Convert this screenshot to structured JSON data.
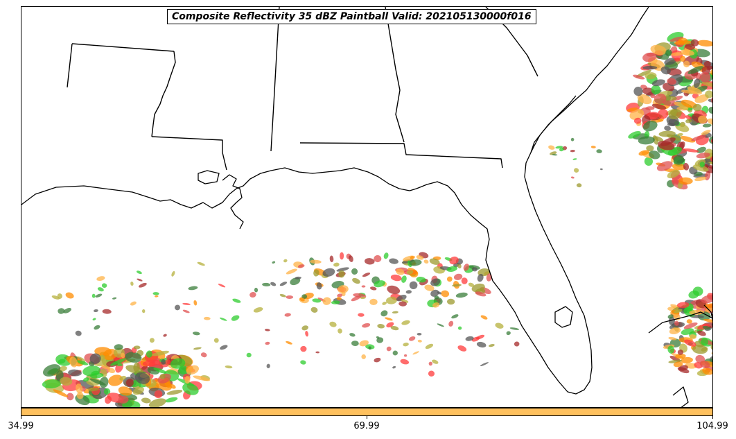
{
  "title": "Composite Reflectivity 35 dBZ Paintball Valid: 202105130000f016",
  "colorbar": {
    "color": "#ffc15e",
    "ticks": [
      "34.99",
      "69.99",
      "104.99"
    ]
  },
  "colors": {
    "red": "#ff3b3b",
    "darkred": "#a52a2a",
    "orange": "#ff8c00",
    "lightorange": "#ffb347",
    "olive": "#9c9a2e",
    "khaki": "#b5b03c",
    "green": "#2ecc2e",
    "darkgreen": "#3a7d3a",
    "gray": "#555555",
    "pink": "#e05050"
  },
  "icons": [
    "coastline-outline",
    "state-border-lines"
  ]
}
